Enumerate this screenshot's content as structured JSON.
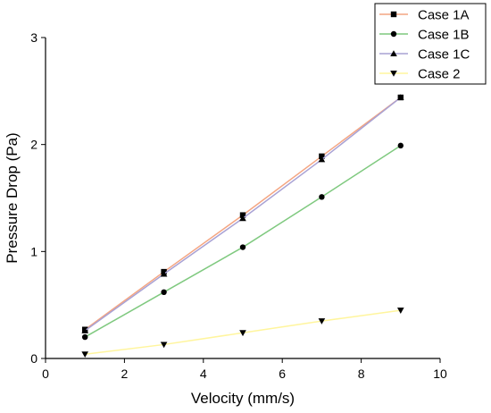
{
  "chart_data": {
    "type": "line",
    "xlabel": "Velocity (mm/s)",
    "ylabel": "Pressure Drop (Pa)",
    "xlim": [
      0,
      10
    ],
    "ylim": [
      0,
      3
    ],
    "xticks": [
      0,
      2,
      4,
      6,
      8,
      10
    ],
    "yticks": [
      0,
      1,
      2,
      3
    ],
    "x": [
      1,
      3,
      5,
      7,
      9
    ],
    "grid": false,
    "legend_position": "top-right",
    "series": [
      {
        "name": "Case 1A",
        "values": [
          0.27,
          0.81,
          1.34,
          1.89,
          2.44
        ],
        "color": "#F4A582",
        "marker": "square"
      },
      {
        "name": "Case 1B",
        "values": [
          0.2,
          0.62,
          1.04,
          1.51,
          1.99
        ],
        "color": "#7FC97F",
        "marker": "circle"
      },
      {
        "name": "Case 1C",
        "values": [
          0.26,
          0.79,
          1.31,
          1.86,
          2.44
        ],
        "color": "#A9A2D4",
        "marker": "triangle-up"
      },
      {
        "name": "Case 2",
        "values": [
          0.04,
          0.13,
          0.24,
          0.35,
          0.45
        ],
        "color": "#FFF59D",
        "marker": "triangle-down"
      }
    ]
  }
}
